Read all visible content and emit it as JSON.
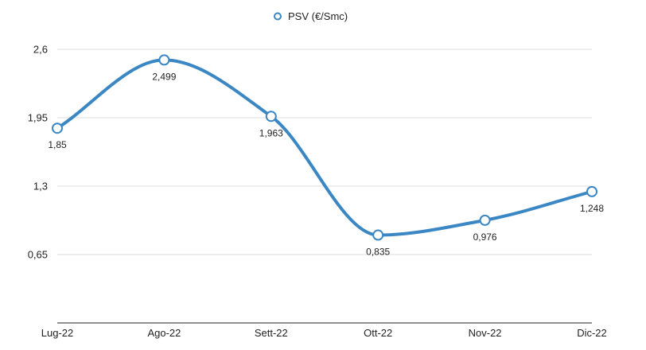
{
  "chart_data": {
    "type": "line",
    "categories": [
      "Lug-22",
      "Ago-22",
      "Sett-22",
      "Ott-22",
      "Nov-22",
      "Dic-22"
    ],
    "series": [
      {
        "name": "PSV (€/Smc)",
        "values": [
          1.85,
          2.499,
          1.963,
          0.835,
          0.976,
          1.248
        ],
        "labels": [
          "1,85",
          "2,499",
          "1,963",
          "0,835",
          "0,976",
          "1,248"
        ],
        "color": "#3b87c4"
      }
    ],
    "y_ticks": [
      0.65,
      1.3,
      1.95,
      2.6
    ],
    "y_tick_labels": [
      "0,65",
      "1,3",
      "1,95",
      "2,6"
    ],
    "ylim": [
      0,
      2.6
    ],
    "smooth": true,
    "grid": true,
    "legend_position": "top-center",
    "colors": {
      "line": "#3b87c4",
      "marker_fill": "#ffffff",
      "grid": "#dddddd",
      "axis": "#222222"
    }
  }
}
